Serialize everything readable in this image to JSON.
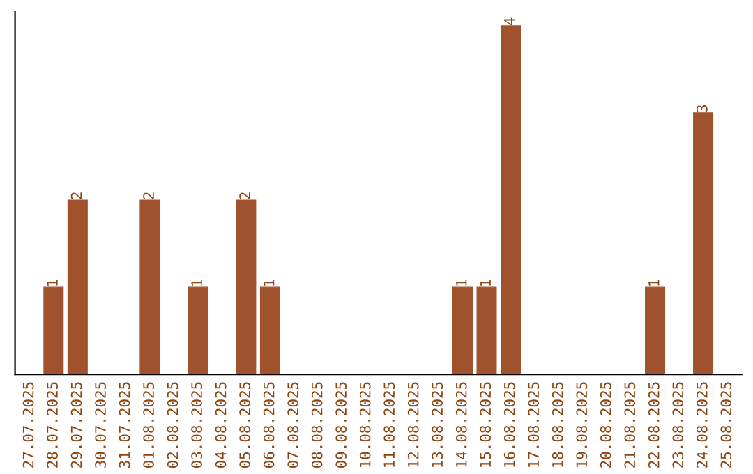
{
  "chart_data": {
    "type": "bar",
    "categories": [
      "27.07.2025",
      "28.07.2025",
      "29.07.2025",
      "30.07.2025",
      "31.07.2025",
      "01.08.2025",
      "02.08.2025",
      "03.08.2025",
      "04.08.2025",
      "05.08.2025",
      "06.08.2025",
      "07.08.2025",
      "08.08.2025",
      "09.08.2025",
      "10.08.2025",
      "11.08.2025",
      "12.08.2025",
      "13.08.2025",
      "14.08.2025",
      "15.08.2025",
      "16.08.2025",
      "17.08.2025",
      "18.08.2025",
      "19.08.2025",
      "20.08.2025",
      "21.08.2025",
      "22.08.2025",
      "23.08.2025",
      "24.08.2025",
      "25.08.2025"
    ],
    "values": [
      0,
      1,
      2,
      0,
      0,
      2,
      0,
      1,
      0,
      2,
      1,
      0,
      0,
      0,
      0,
      0,
      0,
      0,
      1,
      1,
      4,
      0,
      0,
      0,
      0,
      0,
      1,
      0,
      3,
      0
    ],
    "value_labels": [
      null,
      "1",
      "2",
      null,
      null,
      "2",
      null,
      "1",
      null,
      "2",
      "1",
      null,
      null,
      null,
      null,
      null,
      null,
      null,
      "1",
      "1",
      "4",
      null,
      null,
      null,
      null,
      null,
      "1",
      null,
      "3",
      null
    ],
    "color": "#a0522d",
    "tick_labels": "x",
    "grid": false,
    "legend": false
  }
}
